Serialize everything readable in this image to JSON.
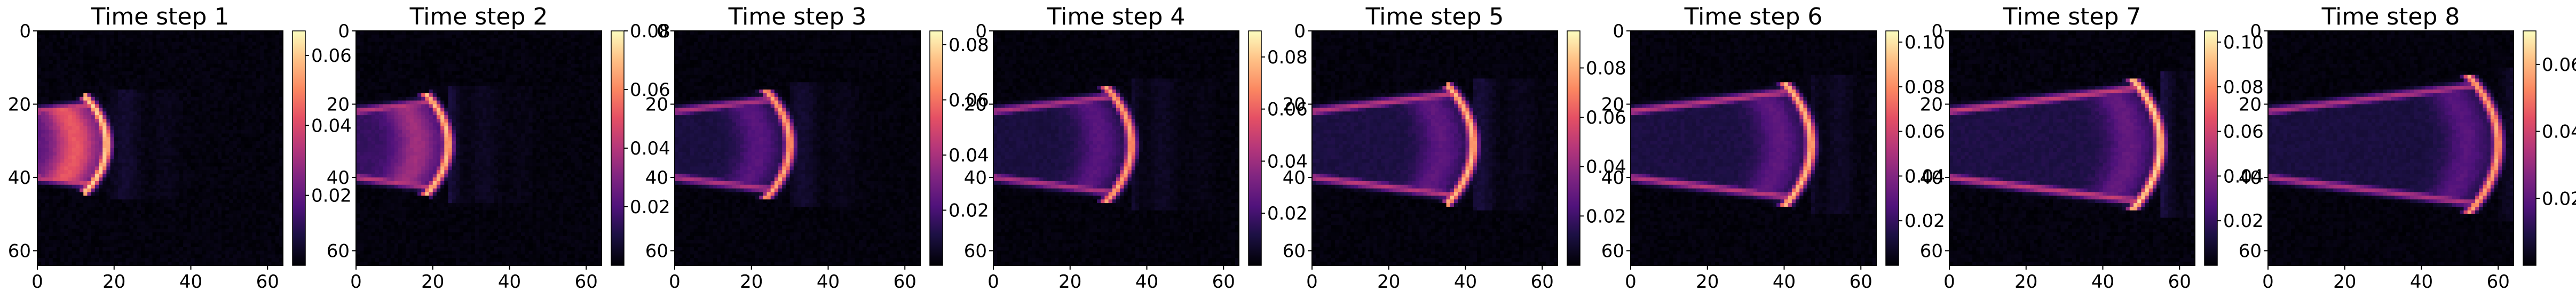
{
  "chart_data": [
    {
      "type": "heatmap",
      "title": "Time step 1",
      "xticks": [
        "0",
        "20",
        "40",
        "60"
      ],
      "yticks": [
        "0",
        "20",
        "40",
        "60"
      ],
      "xlim": [
        0,
        64
      ],
      "ylim": [
        64,
        0
      ],
      "colormap": "magma",
      "colorbar_ticks": [
        "0.02",
        "0.04",
        "0.06"
      ],
      "colorbar_max": 0.067,
      "front_x": 18,
      "intensity": 0.95
    },
    {
      "type": "heatmap",
      "title": "Time step 2",
      "xticks": [
        "0",
        "20",
        "40",
        "60"
      ],
      "yticks": [
        "0",
        "20",
        "40",
        "60"
      ],
      "xlim": [
        0,
        64
      ],
      "ylim": [
        64,
        0
      ],
      "colormap": "magma",
      "colorbar_ticks": [
        "0.02",
        "0.04",
        "0.06",
        "0.08"
      ],
      "colorbar_max": 0.08,
      "front_x": 24,
      "intensity": 0.9
    },
    {
      "type": "heatmap",
      "title": "Time step 3",
      "xticks": [
        "0",
        "20",
        "40",
        "60"
      ],
      "yticks": [
        "0",
        "20",
        "40",
        "60"
      ],
      "xlim": [
        0,
        64
      ],
      "ylim": [
        64,
        0
      ],
      "colormap": "magma",
      "colorbar_ticks": [
        "0.02",
        "0.04",
        "0.06",
        "0.08"
      ],
      "colorbar_max": 0.085,
      "front_x": 30,
      "intensity": 0.85
    },
    {
      "type": "heatmap",
      "title": "Time step 4",
      "xticks": [
        "0",
        "20",
        "40",
        "60"
      ],
      "yticks": [
        "0",
        "20",
        "40",
        "60"
      ],
      "xlim": [
        0,
        64
      ],
      "ylim": [
        64,
        0
      ],
      "colormap": "magma",
      "colorbar_ticks": [
        "0.02",
        "0.04",
        "0.06",
        "0.08"
      ],
      "colorbar_max": 0.09,
      "front_x": 36,
      "intensity": 0.85
    },
    {
      "type": "heatmap",
      "title": "Time step 5",
      "xticks": [
        "0",
        "20",
        "40",
        "60"
      ],
      "yticks": [
        "0",
        "20",
        "40",
        "60"
      ],
      "xlim": [
        0,
        64
      ],
      "ylim": [
        64,
        0
      ],
      "colormap": "magma",
      "colorbar_ticks": [
        "0.02",
        "0.04",
        "0.06",
        "0.08"
      ],
      "colorbar_max": 0.095,
      "front_x": 42,
      "intensity": 0.9
    },
    {
      "type": "heatmap",
      "title": "Time step 6",
      "xticks": [
        "0",
        "20",
        "40",
        "60"
      ],
      "yticks": [
        "0",
        "20",
        "40",
        "60"
      ],
      "xlim": [
        0,
        64
      ],
      "ylim": [
        64,
        0
      ],
      "colormap": "magma",
      "colorbar_ticks": [
        "0.02",
        "0.04",
        "0.06",
        "0.08",
        "0.10"
      ],
      "colorbar_max": 0.105,
      "front_x": 47,
      "intensity": 0.9
    },
    {
      "type": "heatmap",
      "title": "Time step 7",
      "xticks": [
        "0",
        "20",
        "40",
        "60"
      ],
      "yticks": [
        "0",
        "20",
        "40",
        "60"
      ],
      "xlim": [
        0,
        64
      ],
      "ylim": [
        64,
        0
      ],
      "colormap": "magma",
      "colorbar_ticks": [
        "0.02",
        "0.04",
        "0.06",
        "0.08",
        "0.10"
      ],
      "colorbar_max": 0.105,
      "front_x": 55,
      "intensity": 0.95
    },
    {
      "type": "heatmap",
      "title": "Time step 8",
      "xticks": [
        "0",
        "20",
        "40",
        "60"
      ],
      "yticks": [
        "0",
        "20",
        "40",
        "60"
      ],
      "xlim": [
        0,
        64
      ],
      "ylim": [
        64,
        0
      ],
      "colormap": "magma",
      "colorbar_ticks": [
        "0.02",
        "0.04",
        "0.06"
      ],
      "colorbar_max": 0.07,
      "front_x": 60,
      "intensity": 0.85
    }
  ]
}
